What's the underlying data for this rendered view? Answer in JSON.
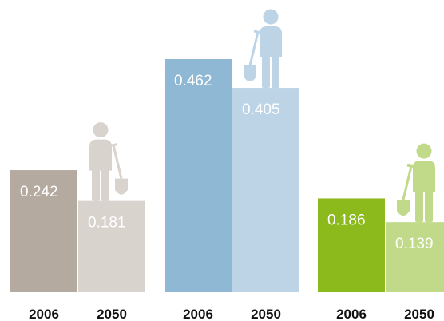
{
  "chart_data": {
    "type": "bar",
    "categories": [
      "2006",
      "2050",
      "2006",
      "2050",
      "2006",
      "2050"
    ],
    "values": [
      0.242,
      0.181,
      0.462,
      0.405,
      0.186,
      0.139
    ],
    "colors": [
      "#b5aa9f",
      "#d9d3ce",
      "#8fb8d4",
      "#bdd4e6",
      "#8cba1c",
      "#c1da8a"
    ]
  }
}
